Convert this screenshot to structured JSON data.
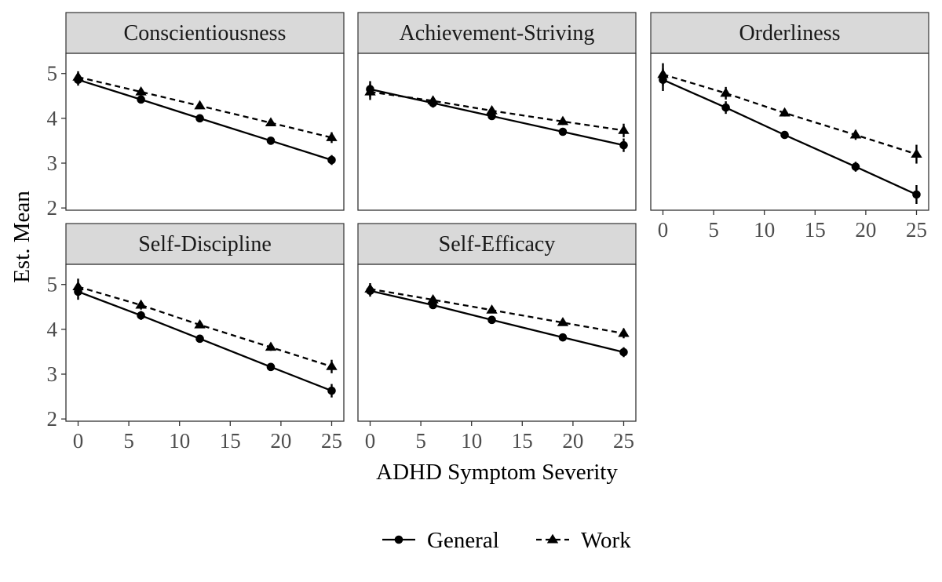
{
  "chart_data": {
    "type": "line",
    "xlabel": "ADHD Symptom Severity",
    "ylabel": "Est. Mean",
    "xlim": [
      -1.2,
      26.2
    ],
    "ylim": [
      1.95,
      5.45
    ],
    "x_ticks": [
      0,
      5,
      10,
      15,
      20,
      25
    ],
    "y_ticks": [
      2,
      3,
      4,
      5
    ],
    "grid": false,
    "legend_position": "bottom",
    "legend": [
      {
        "name": "General",
        "line": "solid",
        "marker": "circle"
      },
      {
        "name": "Work",
        "line": "dashed",
        "marker": "triangle"
      }
    ],
    "facets": [
      {
        "title": "Conscientiousness",
        "series": [
          {
            "name": "General",
            "x": [
              0,
              6.2,
              12,
              19,
              25
            ],
            "y": [
              4.86,
              4.42,
              4.0,
              3.5,
              3.07
            ],
            "err": [
              0.13,
              0.07,
              0.05,
              0.06,
              0.11
            ]
          },
          {
            "name": "Work",
            "x": [
              0,
              6.2,
              12,
              19,
              25
            ],
            "y": [
              4.92,
              4.59,
              4.28,
              3.9,
              3.57
            ],
            "err": [
              0.13,
              0.07,
              0.05,
              0.06,
              0.12
            ]
          }
        ]
      },
      {
        "title": "Achievement-Striving",
        "series": [
          {
            "name": "General",
            "x": [
              0,
              6.2,
              12,
              19,
              25
            ],
            "y": [
              4.65,
              4.34,
              4.05,
              3.7,
              3.4
            ],
            "err": [
              0.18,
              0.1,
              0.06,
              0.08,
              0.15
            ]
          },
          {
            "name": "Work",
            "x": [
              0,
              6.2,
              12,
              19,
              25
            ],
            "y": [
              4.59,
              4.39,
              4.17,
              3.93,
              3.73
            ],
            "err": [
              0.18,
              0.1,
              0.06,
              0.08,
              0.15
            ]
          }
        ]
      },
      {
        "title": "Orderliness",
        "series": [
          {
            "name": "General",
            "x": [
              0,
              6.2,
              12,
              19,
              25
            ],
            "y": [
              4.86,
              4.24,
              3.63,
              2.92,
              2.3
            ],
            "err": [
              0.25,
              0.14,
              0.08,
              0.11,
              0.21
            ]
          },
          {
            "name": "Work",
            "x": [
              0,
              6.2,
              12,
              19,
              25
            ],
            "y": [
              4.98,
              4.56,
              4.12,
              3.63,
              3.2
            ],
            "err": [
              0.25,
              0.14,
              0.08,
              0.11,
              0.21
            ]
          }
        ]
      },
      {
        "title": "Self-Discipline",
        "series": [
          {
            "name": "General",
            "x": [
              0,
              6.2,
              12,
              19,
              25
            ],
            "y": [
              4.84,
              4.31,
              3.79,
              3.16,
              2.63
            ],
            "err": [
              0.18,
              0.1,
              0.06,
              0.08,
              0.15
            ]
          },
          {
            "name": "Work",
            "x": [
              0,
              6.2,
              12,
              19,
              25
            ],
            "y": [
              4.95,
              4.54,
              4.1,
              3.6,
              3.17
            ],
            "err": [
              0.18,
              0.1,
              0.06,
              0.08,
              0.15
            ]
          }
        ]
      },
      {
        "title": "Self-Efficacy",
        "series": [
          {
            "name": "General",
            "x": [
              0,
              6.2,
              12,
              19,
              25
            ],
            "y": [
              4.86,
              4.54,
              4.21,
              3.82,
              3.49
            ],
            "err": [
              0.13,
              0.07,
              0.05,
              0.06,
              0.11
            ]
          },
          {
            "name": "Work",
            "x": [
              0,
              6.2,
              12,
              19,
              25
            ],
            "y": [
              4.9,
              4.66,
              4.43,
              4.15,
              3.91
            ],
            "err": [
              0.13,
              0.07,
              0.05,
              0.06,
              0.11
            ]
          }
        ]
      }
    ]
  }
}
